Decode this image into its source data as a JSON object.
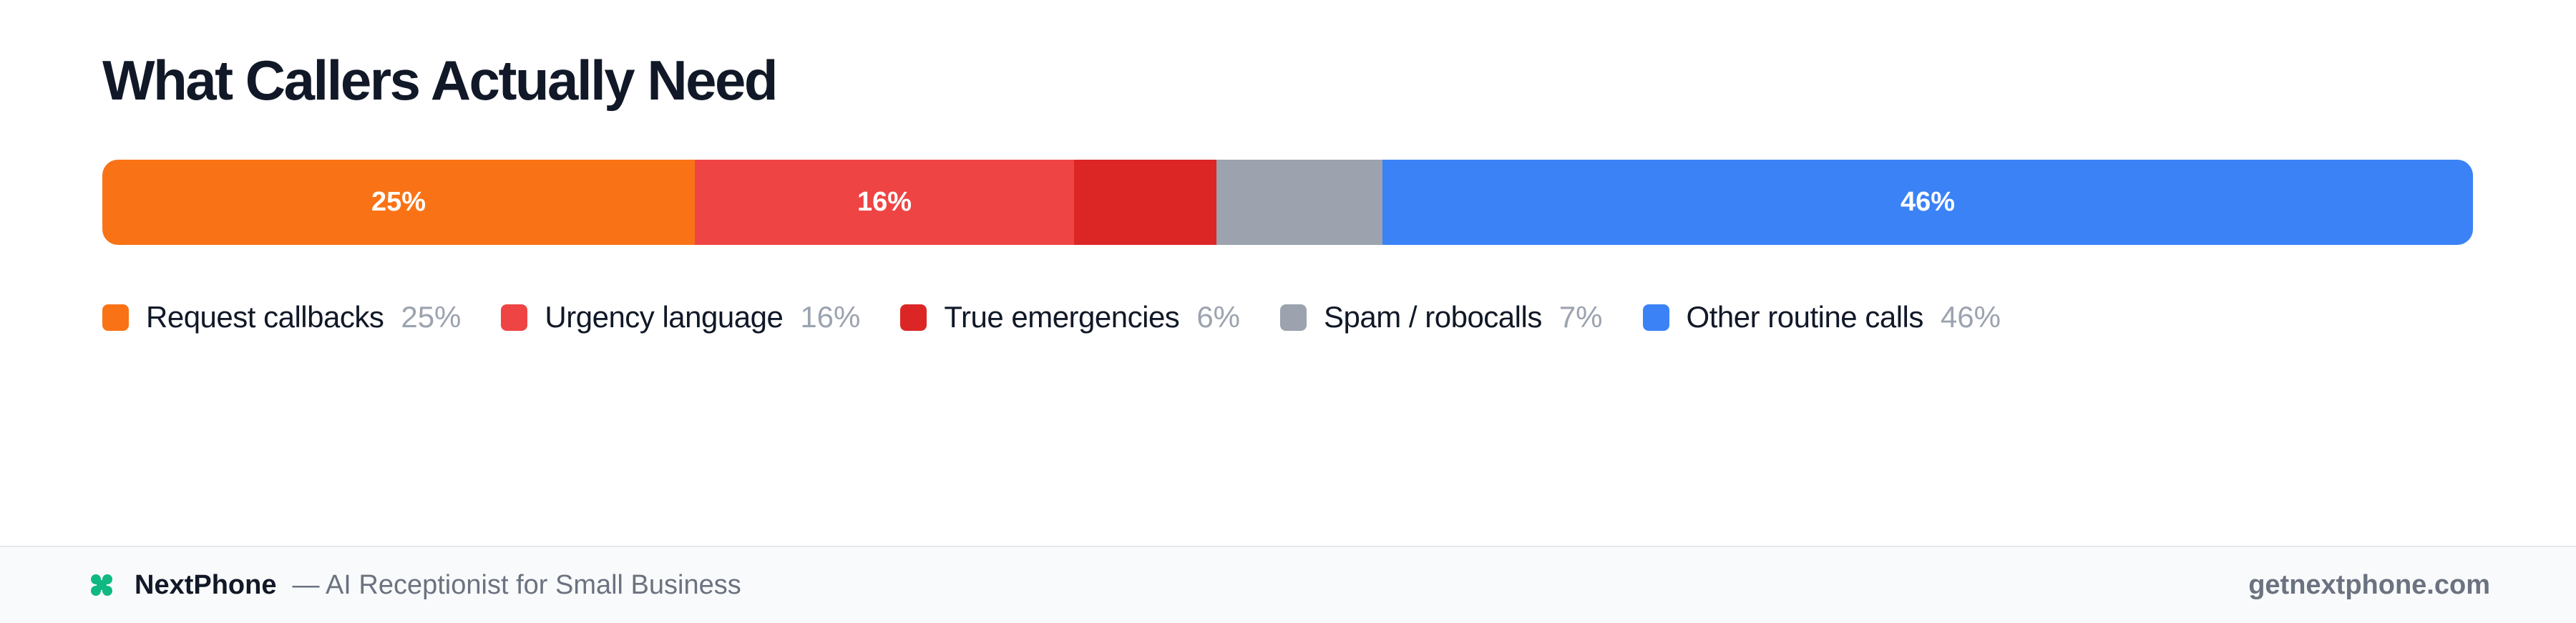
{
  "chart_data": {
    "type": "bar",
    "title": "What Callers Actually Need",
    "orientation": "horizontal-stacked-100",
    "categories": [
      "Request callbacks",
      "Urgency language",
      "True emergencies",
      "Spam / robocalls",
      "Other routine calls"
    ],
    "values": [
      25,
      16,
      6,
      7,
      46
    ],
    "unit": "%",
    "series": [
      {
        "name": "Request callbacks",
        "value": 25,
        "color": "#f97316",
        "bar_label": "25%",
        "legend_value": "25%"
      },
      {
        "name": "Urgency language",
        "value": 16,
        "color": "#ef4444",
        "bar_label": "16%",
        "legend_value": "16%"
      },
      {
        "name": "True emergencies",
        "value": 6,
        "color": "#dc2626",
        "bar_label": "",
        "legend_value": "6%"
      },
      {
        "name": "Spam / robocalls",
        "value": 7,
        "color": "#9ca3af",
        "bar_label": "",
        "legend_value": "7%"
      },
      {
        "name": "Other routine calls",
        "value": 46,
        "color": "#3b82f6",
        "bar_label": "46%",
        "legend_value": "46%"
      }
    ],
    "legend_placement": "bottom",
    "grid": false
  },
  "footer": {
    "brand_icon": "nextphone-logo-icon",
    "brand_color": "#10b981",
    "brand_name": "NextPhone",
    "tagline": "— AI Receptionist for Small Business",
    "site": "getnextphone.com"
  }
}
